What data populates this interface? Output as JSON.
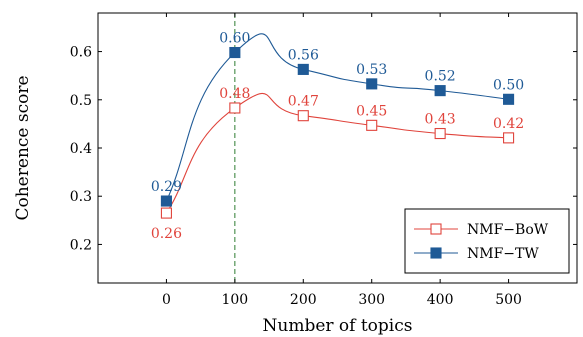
{
  "chart_data": {
    "type": "line",
    "title": "",
    "xlabel": "Number of topics",
    "ylabel": "Coherence score",
    "categories": [
      "0",
      "100",
      "200",
      "300",
      "400",
      "500"
    ],
    "yticks": [
      "0.2",
      "0.3",
      "0.4",
      "0.5",
      "0.6"
    ],
    "ylim": [
      0.12,
      0.68
    ],
    "grid": false,
    "legend_position": "bottom-right",
    "vertical_reference": {
      "category": "100",
      "style": "dashed",
      "color": "#2e7d32"
    },
    "series": [
      {
        "name": "NMF−BoW",
        "color": "#e0443c",
        "marker": "open-square",
        "values": [
          0.265,
          0.483,
          0.467,
          0.447,
          0.43,
          0.421
        ],
        "labels": [
          "0.26",
          "0.48",
          "0.47",
          "0.45",
          "0.43",
          "0.42"
        ],
        "label_position": [
          "below",
          "above",
          "above",
          "above",
          "above",
          "above"
        ]
      },
      {
        "name": "NMF−TW",
        "color": "#1f5a96",
        "marker": "filled-square",
        "values": [
          0.29,
          0.598,
          0.563,
          0.533,
          0.519,
          0.501
        ],
        "labels": [
          "0.29",
          "0.60",
          "0.56",
          "0.53",
          "0.52",
          "0.50"
        ],
        "label_position": [
          "above",
          "above",
          "above",
          "above",
          "above",
          "above"
        ]
      }
    ]
  }
}
